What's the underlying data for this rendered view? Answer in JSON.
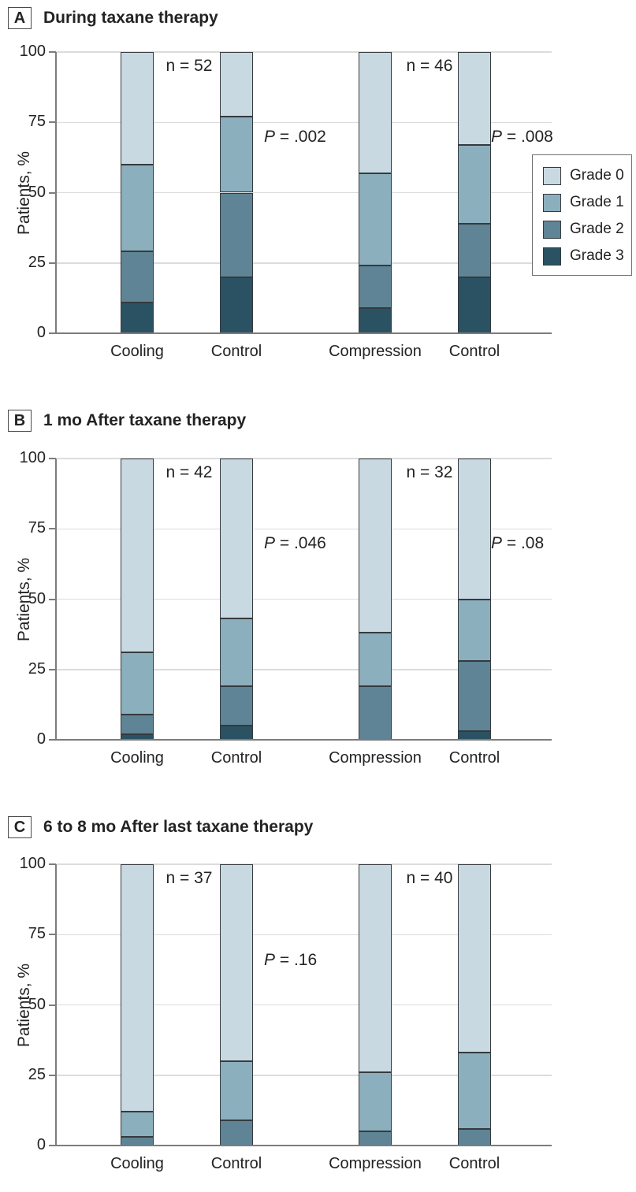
{
  "figure": {
    "panels": [
      {
        "letter": "A",
        "title": "During taxane therapy"
      },
      {
        "letter": "B",
        "title": "1 mo After taxane therapy"
      },
      {
        "letter": "C",
        "title": "6 to 8 mo After last taxane therapy"
      }
    ],
    "legend": {
      "items": [
        {
          "label": "Grade 0",
          "color": "#c9d9e1"
        },
        {
          "label": "Grade 1",
          "color": "#8cafbe"
        },
        {
          "label": "Grade 2",
          "color": "#5e8496"
        },
        {
          "label": "Grade 3",
          "color": "#2b5263"
        }
      ]
    }
  },
  "colors": {
    "grade0": "#c9d9e1",
    "grade1": "#8cafbe",
    "grade2": "#5e8496",
    "grade3": "#2b5263",
    "segment_border": "#353a3e",
    "gridline": "#dcdcdc",
    "axis": "#7c7c7c",
    "text": "#232323"
  },
  "chart_data": [
    {
      "type": "bar",
      "stacked": true,
      "panel": "A",
      "title": "During taxane therapy",
      "ylabel": "Patients, %",
      "ylim": [
        0,
        100
      ],
      "yticks": [
        0,
        25,
        50,
        75,
        100
      ],
      "grid": "horizontal",
      "legend_position": "right-inside",
      "categories": [
        "Cooling",
        "Control",
        "Compression",
        "Control"
      ],
      "stack_order_bottom_to_top": [
        "Grade 3",
        "Grade 2",
        "Grade 1",
        "Grade 0"
      ],
      "series": [
        {
          "name": "Grade 0",
          "values": [
            40,
            23,
            43,
            33
          ]
        },
        {
          "name": "Grade 1",
          "values": [
            31,
            27,
            33,
            28
          ]
        },
        {
          "name": "Grade 2",
          "values": [
            18,
            30,
            15,
            19
          ]
        },
        {
          "name": "Grade 3",
          "values": [
            11,
            20,
            9,
            20
          ]
        }
      ],
      "group_sizes": [
        {
          "label": "n = 52",
          "applies_to": [
            "Cooling",
            "Control"
          ]
        },
        {
          "label": "n = 46",
          "applies_to": [
            "Compression",
            "Control"
          ]
        }
      ],
      "p_values": [
        {
          "label": "P = .002",
          "between": [
            "Cooling",
            "Control"
          ]
        },
        {
          "label": "P = .008",
          "between": [
            "Compression",
            "Control"
          ]
        }
      ]
    },
    {
      "type": "bar",
      "stacked": true,
      "panel": "B",
      "title": "1 mo After taxane therapy",
      "ylabel": "Patients, %",
      "ylim": [
        0,
        100
      ],
      "yticks": [
        0,
        25,
        50,
        75,
        100
      ],
      "grid": "horizontal",
      "categories": [
        "Cooling",
        "Control",
        "Compression",
        "Control"
      ],
      "stack_order_bottom_to_top": [
        "Grade 3",
        "Grade 2",
        "Grade 1",
        "Grade 0"
      ],
      "series": [
        {
          "name": "Grade 0",
          "values": [
            69,
            57,
            62,
            50
          ]
        },
        {
          "name": "Grade 1",
          "values": [
            22,
            24,
            19,
            22
          ]
        },
        {
          "name": "Grade 2",
          "values": [
            7,
            14,
            19,
            25
          ]
        },
        {
          "name": "Grade 3",
          "values": [
            2,
            5,
            0,
            3
          ]
        }
      ],
      "group_sizes": [
        {
          "label": "n = 42",
          "applies_to": [
            "Cooling",
            "Control"
          ]
        },
        {
          "label": "n = 32",
          "applies_to": [
            "Compression",
            "Control"
          ]
        }
      ],
      "p_values": [
        {
          "label": "P = .046",
          "between": [
            "Cooling",
            "Control"
          ]
        },
        {
          "label": "P = .08",
          "between": [
            "Compression",
            "Control"
          ]
        }
      ]
    },
    {
      "type": "bar",
      "stacked": true,
      "panel": "C",
      "title": "6 to 8 mo After last taxane therapy",
      "ylabel": "Patients, %",
      "ylim": [
        0,
        100
      ],
      "yticks": [
        0,
        25,
        50,
        75,
        100
      ],
      "grid": "horizontal",
      "categories": [
        "Cooling",
        "Control",
        "Compression",
        "Control"
      ],
      "stack_order_bottom_to_top": [
        "Grade 3",
        "Grade 2",
        "Grade 1",
        "Grade 0"
      ],
      "series": [
        {
          "name": "Grade 0",
          "values": [
            88,
            70,
            74,
            67
          ]
        },
        {
          "name": "Grade 1",
          "values": [
            9,
            21,
            21,
            27
          ]
        },
        {
          "name": "Grade 2",
          "values": [
            3,
            9,
            5,
            6
          ]
        },
        {
          "name": "Grade 3",
          "values": [
            0,
            0,
            0,
            0
          ]
        }
      ],
      "group_sizes": [
        {
          "label": "n = 37",
          "applies_to": [
            "Cooling",
            "Control"
          ]
        },
        {
          "label": "n = 40",
          "applies_to": [
            "Compression",
            "Control"
          ]
        }
      ],
      "p_values": [
        {
          "label": "P = .16",
          "between": [
            "Cooling",
            "Control"
          ]
        }
      ]
    }
  ]
}
